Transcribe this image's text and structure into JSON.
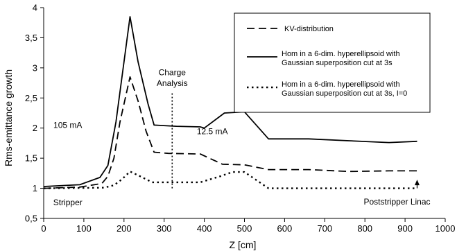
{
  "chart_data": {
    "type": "line",
    "title": "",
    "xlabel": "Z [cm]",
    "ylabel": "Rms-emittance growth",
    "xlim": [
      0,
      1000
    ],
    "ylim": [
      0.5,
      4
    ],
    "xticks": [
      0,
      100,
      200,
      300,
      400,
      500,
      600,
      700,
      800,
      900,
      1000
    ],
    "yticks": [
      "0,5",
      "1",
      "1,5",
      "2",
      "2,5",
      "3",
      "3,5",
      "4"
    ],
    "legend_position": "top-right",
    "grid": false,
    "series": [
      {
        "name": "KV-distribution",
        "style": "dashed",
        "points": [
          [
            0,
            1.0
          ],
          [
            90,
            1.02
          ],
          [
            145,
            1.08
          ],
          [
            160,
            1.2
          ],
          [
            175,
            1.5
          ],
          [
            190,
            2.1
          ],
          [
            215,
            2.85
          ],
          [
            235,
            2.45
          ],
          [
            255,
            1.95
          ],
          [
            275,
            1.6
          ],
          [
            310,
            1.58
          ],
          [
            390,
            1.57
          ],
          [
            445,
            1.4
          ],
          [
            500,
            1.39
          ],
          [
            560,
            1.31
          ],
          [
            660,
            1.31
          ],
          [
            760,
            1.28
          ],
          [
            860,
            1.29
          ],
          [
            930,
            1.29
          ]
        ]
      },
      {
        "name": "Hom in a 6-dim. hyperellipsoid with Gaussian superposition cut at 3s",
        "style": "solid",
        "points": [
          [
            0,
            1.03
          ],
          [
            90,
            1.06
          ],
          [
            140,
            1.18
          ],
          [
            160,
            1.38
          ],
          [
            180,
            2.1
          ],
          [
            200,
            3.1
          ],
          [
            215,
            3.85
          ],
          [
            235,
            3.1
          ],
          [
            260,
            2.4
          ],
          [
            275,
            2.05
          ],
          [
            330,
            2.03
          ],
          [
            390,
            2.02
          ],
          [
            400,
            2.0
          ],
          [
            450,
            2.25
          ],
          [
            500,
            2.27
          ],
          [
            560,
            1.82
          ],
          [
            660,
            1.82
          ],
          [
            760,
            1.79
          ],
          [
            860,
            1.76
          ],
          [
            930,
            1.78
          ]
        ]
      },
      {
        "name": "Hom in a 6-dim. hyperellipsoid with Gaussian superposition cut at 3s, I=0",
        "style": "dotted",
        "points": [
          [
            0,
            1.0
          ],
          [
            150,
            1.01
          ],
          [
            175,
            1.05
          ],
          [
            195,
            1.15
          ],
          [
            215,
            1.28
          ],
          [
            240,
            1.2
          ],
          [
            270,
            1.1
          ],
          [
            330,
            1.1
          ],
          [
            390,
            1.1
          ],
          [
            440,
            1.2
          ],
          [
            470,
            1.27
          ],
          [
            500,
            1.27
          ],
          [
            560,
            1.0
          ],
          [
            930,
            1.0
          ]
        ]
      }
    ],
    "annotations": [
      {
        "text": "105 mA",
        "x": 60,
        "y": 2.0
      },
      {
        "text": "12.5 mA",
        "x": 420,
        "y": 1.9
      },
      {
        "text": "Charge",
        "x": 320,
        "y": 2.88
      },
      {
        "text": "Analysis",
        "x": 320,
        "y": 2.7
      },
      {
        "text": "Stripper",
        "x": 60,
        "y": 0.72
      },
      {
        "text": "Poststripper Linac",
        "x": 880,
        "y": 0.73
      }
    ],
    "markers": {
      "charge_analysis_line": {
        "x": 320,
        "y_from": 1.0,
        "y_to": 2.6
      },
      "poststripper_arrow": {
        "x": 930,
        "y_from": 1.0,
        "y_to": 1.12
      }
    }
  }
}
